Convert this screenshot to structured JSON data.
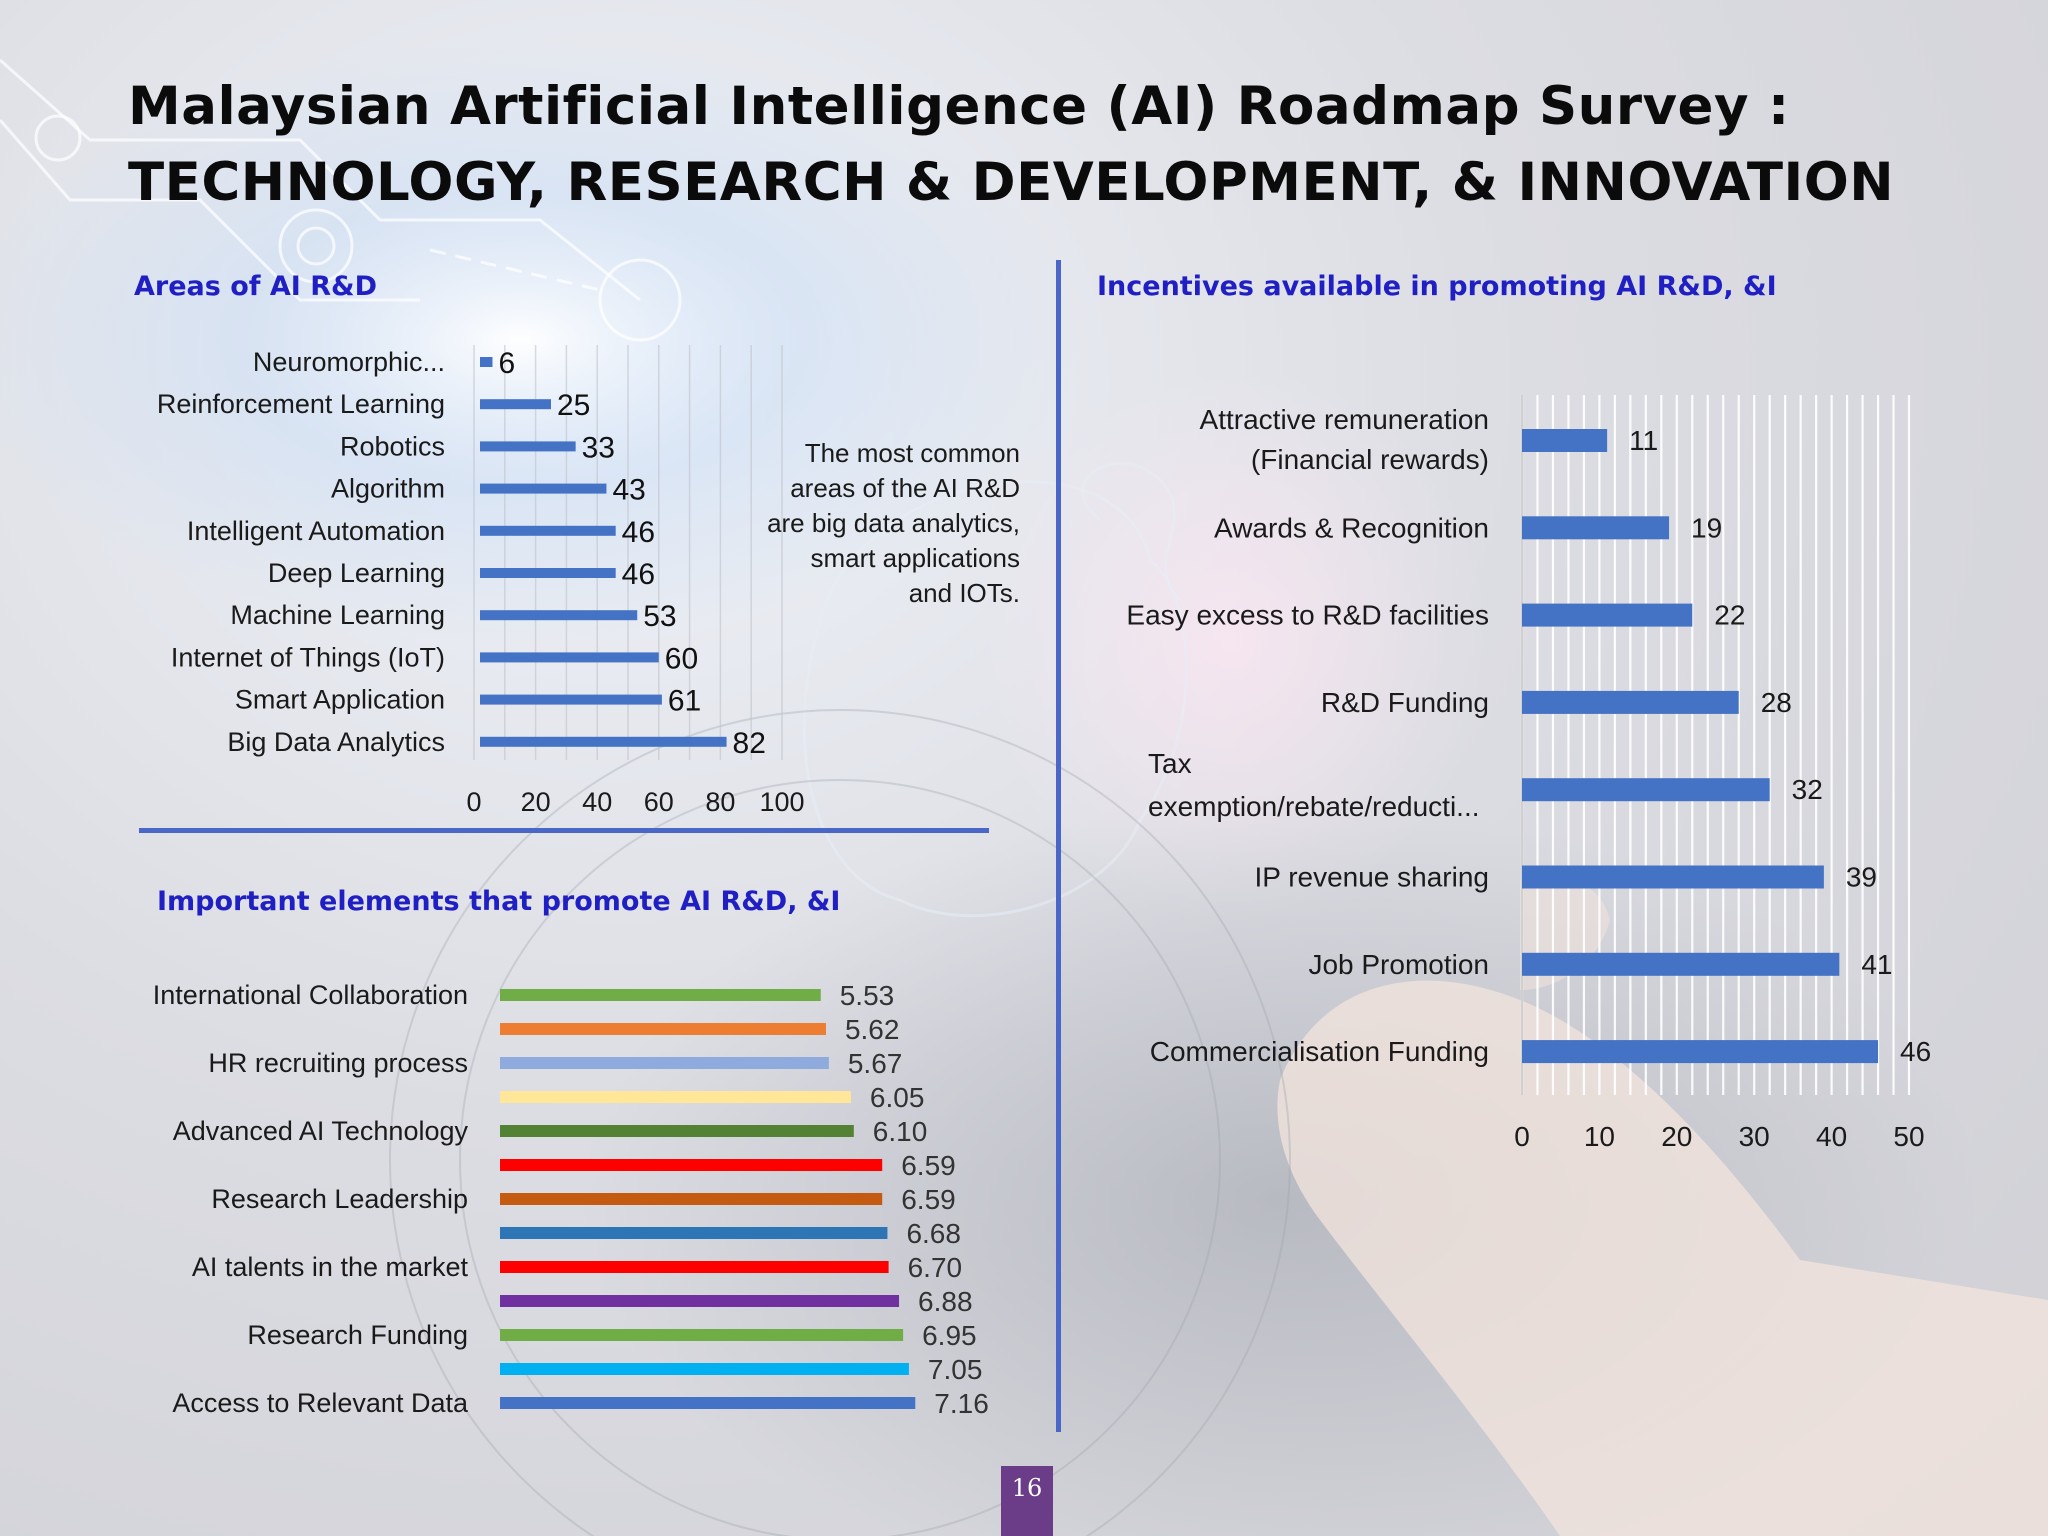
{
  "slide": {
    "title_line1": "Malaysian Artificial Intelligence (AI) Roadmap Survey :",
    "title_line2": "TECHNOLOGY, RESEARCH & DEVELOPMENT, & INNOVATION",
    "page_number": "16"
  },
  "sections": {
    "areas_title": "Areas of AI R&D",
    "incentives_title": "Incentives available in promoting AI R&D, &I",
    "elements_title": "Important elements that promote AI R&D, &I",
    "areas_note": "The most common areas of the AI R&D are big data analytics, smart applications and IOTs."
  },
  "colors": {
    "bar_blue": "#4472c4",
    "section_title": "#1f1fc4",
    "divider": "#4a67c8",
    "page_tab": "#6b3c87"
  },
  "chart_data": [
    {
      "id": "areas",
      "type": "bar",
      "orientation": "horizontal",
      "title": "Areas of AI R&D",
      "categories": [
        "Neuromorphic...",
        "Reinforcement Learning",
        "Robotics",
        "Algorithm",
        "Intelligent Automation",
        "Deep Learning",
        "Machine Learning",
        "Internet of Things (IoT)",
        "Smart Application",
        "Big Data Analytics"
      ],
      "values": [
        6,
        25,
        33,
        43,
        46,
        46,
        53,
        60,
        61,
        82
      ],
      "xlim": [
        0,
        100
      ],
      "xticks": [
        "0",
        "20",
        "40",
        "60",
        "80",
        "100"
      ],
      "grid": true
    },
    {
      "id": "incentives",
      "type": "bar",
      "orientation": "horizontal",
      "title": "Incentives available in promoting AI R&D, &I",
      "categories": [
        [
          "Attractive remuneration",
          "(Financial rewards)"
        ],
        [
          "Awards & Recognition"
        ],
        [
          "Easy excess to R&D facilities"
        ],
        [
          "R&D Funding"
        ],
        [
          "Tax",
          "exemption/rebate/reducti..."
        ],
        [
          "IP revenue sharing"
        ],
        [
          "Job Promotion"
        ],
        [
          "Commercialisation Funding"
        ]
      ],
      "values": [
        11,
        19,
        22,
        28,
        32,
        39,
        41,
        46
      ],
      "xlim": [
        0,
        50
      ],
      "xticks": [
        "0",
        "10",
        "20",
        "30",
        "40",
        "50"
      ],
      "grid": true
    },
    {
      "id": "elements",
      "type": "bar",
      "orientation": "horizontal",
      "title": "Important elements that promote AI R&D, &I",
      "category_labels": [
        "International Collaboration",
        "HR recruiting process",
        "Advanced AI Technology",
        "Research Leadership",
        "AI talents in the market",
        "Research Funding",
        "Access to Relevant Data"
      ],
      "values": [
        5.53,
        5.62,
        5.67,
        6.05,
        6.1,
        6.59,
        6.59,
        6.68,
        6.7,
        6.88,
        6.95,
        7.05,
        7.16
      ],
      "value_labels": [
        "5.53",
        "5.62",
        "5.67",
        "6.05",
        "6.10",
        "6.59",
        "6.59",
        "6.68",
        "6.70",
        "6.88",
        "6.95",
        "7.05",
        "7.16"
      ],
      "bar_colors": [
        "#70ad47",
        "#ed7d31",
        "#8faadc",
        "#ffe699",
        "#548235",
        "#ff0000",
        "#c55a11",
        "#2e75b6",
        "#ff0000",
        "#7030a0",
        "#70ad47",
        "#00b0f0",
        "#4472c4"
      ],
      "xlim": [
        0,
        8
      ]
    }
  ]
}
